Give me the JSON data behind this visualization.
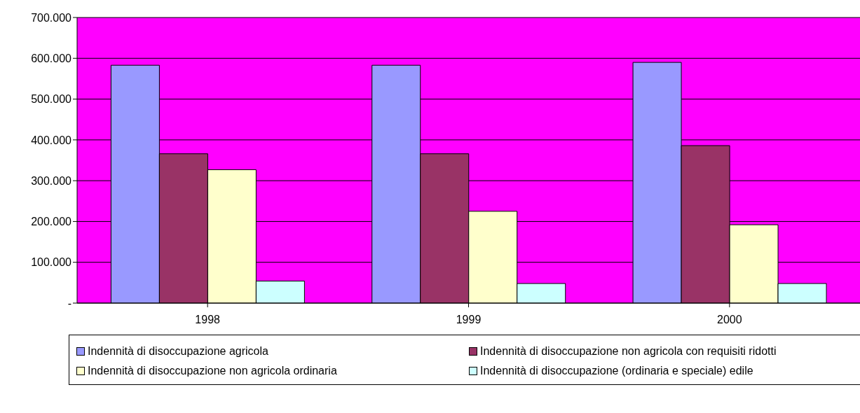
{
  "chart_data": {
    "type": "bar",
    "categories": [
      "1998",
      "1999",
      "2000"
    ],
    "series": [
      {
        "name": "Indennità di disoccupazione agricola",
        "color": "#9999ff",
        "values": [
          583000,
          583000,
          590000
        ]
      },
      {
        "name": "Indennità di disoccupazione non agricola con requisiti ridotti",
        "color": "#993366",
        "values": [
          366000,
          366000,
          386000
        ]
      },
      {
        "name": "Indennità di disoccupazione non agricola ordinaria",
        "color": "#ffffcc",
        "values": [
          327000,
          225000,
          192000
        ]
      },
      {
        "name": "Indennità di disoccupazione (ordinaria e speciale) edile",
        "color": "#ccffff",
        "values": [
          54000,
          48000,
          48000
        ]
      }
    ],
    "ylim": [
      0,
      700000
    ],
    "yticks": [
      {
        "value": 0,
        "label": "-"
      },
      {
        "value": 100000,
        "label": "100.000"
      },
      {
        "value": 200000,
        "label": "200.000"
      },
      {
        "value": 300000,
        "label": "300.000"
      },
      {
        "value": 400000,
        "label": "400.000"
      },
      {
        "value": 500000,
        "label": "500.000"
      },
      {
        "value": 600000,
        "label": "600.000"
      },
      {
        "value": 700000,
        "label": "700.000"
      }
    ],
    "grid": "y",
    "legend": "bottom"
  }
}
